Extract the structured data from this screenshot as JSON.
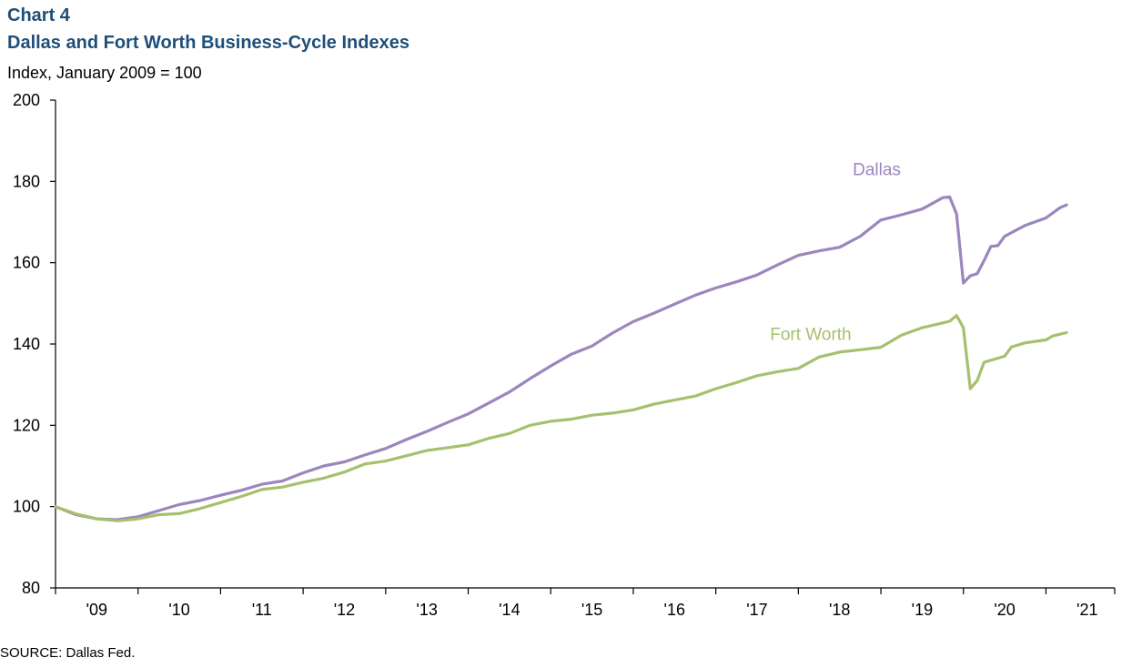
{
  "header": {
    "chart_label": "Chart 4",
    "title": "Dallas and Fort Worth Business-Cycle Indexes",
    "ylabel": "Index, January 2009 = 100"
  },
  "footer": {
    "source": "SOURCE:  Dallas Fed."
  },
  "chart_data": {
    "type": "line",
    "title": "Dallas and Fort Worth Business-Cycle Indexes",
    "ylabel": "Index, January 2009 = 100",
    "xlabel": "",
    "ylim": [
      80,
      200
    ],
    "yticks": [
      80,
      100,
      120,
      140,
      160,
      180,
      200
    ],
    "xlim": [
      2009.0,
      2021.833
    ],
    "xtick_labels": [
      "'09",
      "'10",
      "'11",
      "'12",
      "'13",
      "'14",
      "'15",
      "'16",
      "'17",
      "'18",
      "'19",
      "'20",
      "'21"
    ],
    "xtick_label_positions": [
      2009.5,
      2010.5,
      2011.5,
      2012.5,
      2013.5,
      2014.5,
      2015.5,
      2016.5,
      2017.5,
      2018.5,
      2019.5,
      2020.5,
      2021.5
    ],
    "year_boundaries": [
      2010,
      2011,
      2012,
      2013,
      2014,
      2015,
      2016,
      2017,
      2018,
      2019,
      2020,
      2021
    ],
    "grid": false,
    "legend": "inline labels",
    "series": [
      {
        "name": "Dallas",
        "color": "#9b86bd",
        "points": [
          [
            2009.0,
            100
          ],
          [
            2009.25,
            98
          ],
          [
            2009.5,
            97
          ],
          [
            2009.75,
            96.8
          ],
          [
            2010.0,
            97.5
          ],
          [
            2010.25,
            99
          ],
          [
            2010.5,
            100.5
          ],
          [
            2010.75,
            101.5
          ],
          [
            2011.0,
            102.8
          ],
          [
            2011.25,
            104
          ],
          [
            2011.5,
            105.5
          ],
          [
            2011.75,
            106.3
          ],
          [
            2012.0,
            108.3
          ],
          [
            2012.25,
            110
          ],
          [
            2012.5,
            111
          ],
          [
            2012.75,
            112.7
          ],
          [
            2013.0,
            114.3
          ],
          [
            2013.25,
            116.5
          ],
          [
            2013.5,
            118.5
          ],
          [
            2013.75,
            120.7
          ],
          [
            2014.0,
            122.8
          ],
          [
            2014.25,
            125.5
          ],
          [
            2014.5,
            128.2
          ],
          [
            2014.75,
            131.5
          ],
          [
            2015.0,
            134.6
          ],
          [
            2015.25,
            137.5
          ],
          [
            2015.5,
            139.5
          ],
          [
            2015.75,
            142.7
          ],
          [
            2016.0,
            145.5
          ],
          [
            2016.25,
            147.6
          ],
          [
            2016.5,
            149.8
          ],
          [
            2016.75,
            152
          ],
          [
            2017.0,
            153.8
          ],
          [
            2017.25,
            155.3
          ],
          [
            2017.5,
            157
          ],
          [
            2017.75,
            159.5
          ],
          [
            2018.0,
            161.8
          ],
          [
            2018.25,
            162.9
          ],
          [
            2018.5,
            163.8
          ],
          [
            2018.75,
            166.5
          ],
          [
            2019.0,
            170.5
          ],
          [
            2019.25,
            171.8
          ],
          [
            2019.5,
            173.2
          ],
          [
            2019.75,
            176
          ],
          [
            2019.833,
            176.2
          ],
          [
            2019.917,
            172
          ],
          [
            2020.0,
            155
          ],
          [
            2020.083,
            156.8
          ],
          [
            2020.167,
            157.3
          ],
          [
            2020.25,
            160.5
          ],
          [
            2020.333,
            164
          ],
          [
            2020.417,
            164.2
          ],
          [
            2020.5,
            166.5
          ],
          [
            2020.75,
            169.2
          ],
          [
            2021.0,
            171
          ],
          [
            2021.167,
            173.5
          ],
          [
            2021.25,
            174.2
          ]
        ]
      },
      {
        "name": "Fort Worth",
        "color": "#a6c06e",
        "points": [
          [
            2009.0,
            100
          ],
          [
            2009.25,
            98.2
          ],
          [
            2009.5,
            97
          ],
          [
            2009.75,
            96.5
          ],
          [
            2010.0,
            97
          ],
          [
            2010.25,
            98
          ],
          [
            2010.5,
            98.3
          ],
          [
            2010.75,
            99.5
          ],
          [
            2011.0,
            101
          ],
          [
            2011.25,
            102.5
          ],
          [
            2011.5,
            104.2
          ],
          [
            2011.75,
            104.8
          ],
          [
            2012.0,
            106
          ],
          [
            2012.25,
            107
          ],
          [
            2012.5,
            108.5
          ],
          [
            2012.75,
            110.5
          ],
          [
            2013.0,
            111.2
          ],
          [
            2013.25,
            112.5
          ],
          [
            2013.5,
            113.8
          ],
          [
            2013.75,
            114.5
          ],
          [
            2014.0,
            115.2
          ],
          [
            2014.25,
            116.8
          ],
          [
            2014.5,
            118
          ],
          [
            2014.75,
            120
          ],
          [
            2015.0,
            121
          ],
          [
            2015.25,
            121.5
          ],
          [
            2015.5,
            122.5
          ],
          [
            2015.75,
            123
          ],
          [
            2016.0,
            123.8
          ],
          [
            2016.25,
            125.2
          ],
          [
            2016.5,
            126.2
          ],
          [
            2016.75,
            127.2
          ],
          [
            2017.0,
            129
          ],
          [
            2017.25,
            130.5
          ],
          [
            2017.5,
            132.2
          ],
          [
            2017.75,
            133.2
          ],
          [
            2018.0,
            134
          ],
          [
            2018.25,
            136.8
          ],
          [
            2018.5,
            138
          ],
          [
            2018.75,
            138.6
          ],
          [
            2019.0,
            139.2
          ],
          [
            2019.25,
            142.2
          ],
          [
            2019.5,
            144
          ],
          [
            2019.75,
            145.2
          ],
          [
            2019.833,
            145.6
          ],
          [
            2019.917,
            147
          ],
          [
            2020.0,
            144
          ],
          [
            2020.083,
            129
          ],
          [
            2020.167,
            131
          ],
          [
            2020.25,
            135.5
          ],
          [
            2020.5,
            137
          ],
          [
            2020.583,
            139.3
          ],
          [
            2020.75,
            140.3
          ],
          [
            2021.0,
            141
          ],
          [
            2021.083,
            142
          ],
          [
            2021.25,
            142.8
          ]
        ]
      }
    ]
  }
}
